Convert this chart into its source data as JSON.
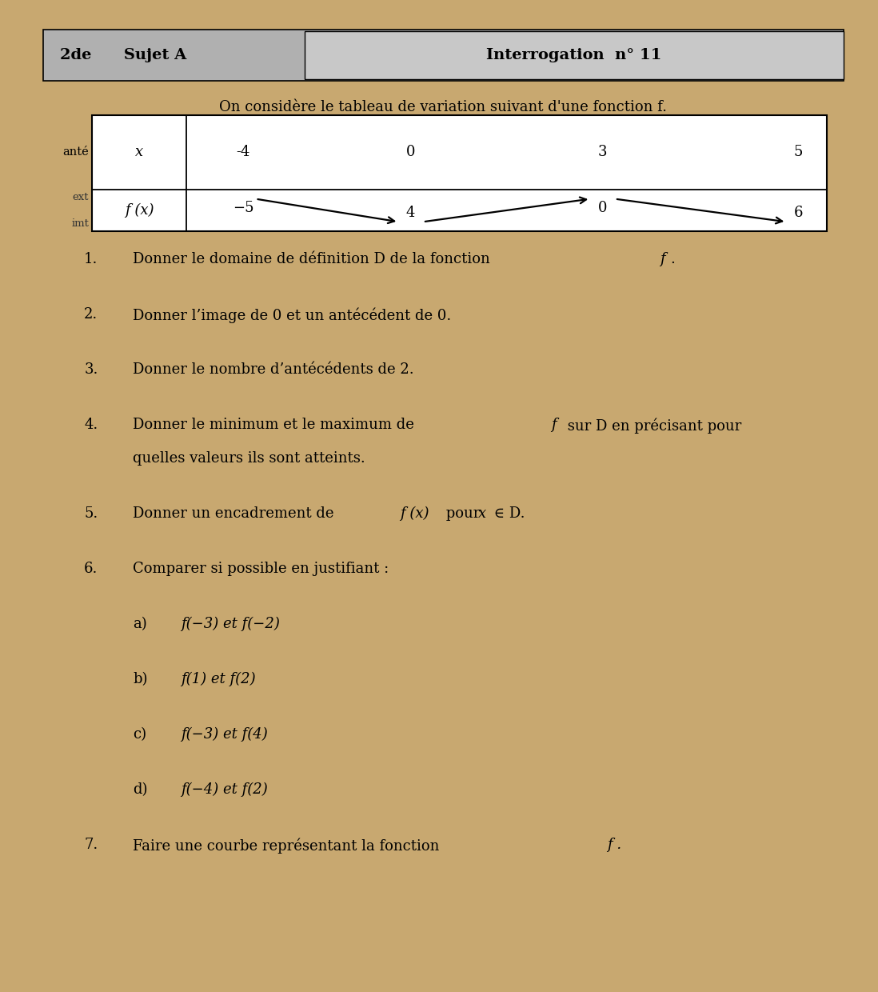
{
  "bg_color": "#c8a870",
  "paper_color": "#f8f6f2",
  "header_bg": "#b0b0b0",
  "header_bg2": "#c8c8c8",
  "title_left": "2de      Sujet A",
  "title_right": "Interrogation  n° 11",
  "intro_text": "On considère le tableau de variation suivant d'une fonction f.",
  "table_x_values": [
    "-4",
    "0",
    "3",
    "5"
  ],
  "table_fx_top": [
    "",
    "4",
    "",
    "6"
  ],
  "table_fx_bot": [
    "-5",
    "",
    "0",
    ""
  ],
  "q1": "Donner le domaine de définition D de la fonction ",
  "q1f": "f",
  "q2": "Donner l’image de 0 et un antécédent de 0.",
  "q3": "Donner le nombre d’antécédents de 2.",
  "q4a": "Donner le minimum et le maximum de ",
  "q4f": "f",
  "q4b": " sur D en précisant pour",
  "q4c": "quelles valeurs ils sont atteints.",
  "q5a": "Donner un encadrement de ",
  "q5fx": "f (x)",
  "q5b": " pour ",
  "q5x": "x",
  "q5c": " ∈ D.",
  "q6": "Comparer si possible en justifiant :",
  "q6a_label": "a)",
  "q6a_expr": "f(−3) et f(−2)",
  "q6b_label": "b)",
  "q6b_expr": "f(1) et f(2)",
  "q6c_label": "c)",
  "q6c_expr": "f(−3) et f(4)",
  "q6d_label": "d)",
  "q6d_expr": "f(−4) et f(2)",
  "q7a": "Faire une courbe représentant la fonction ",
  "q7f": "f .",
  "font_size": 13,
  "font_size_header": 14
}
